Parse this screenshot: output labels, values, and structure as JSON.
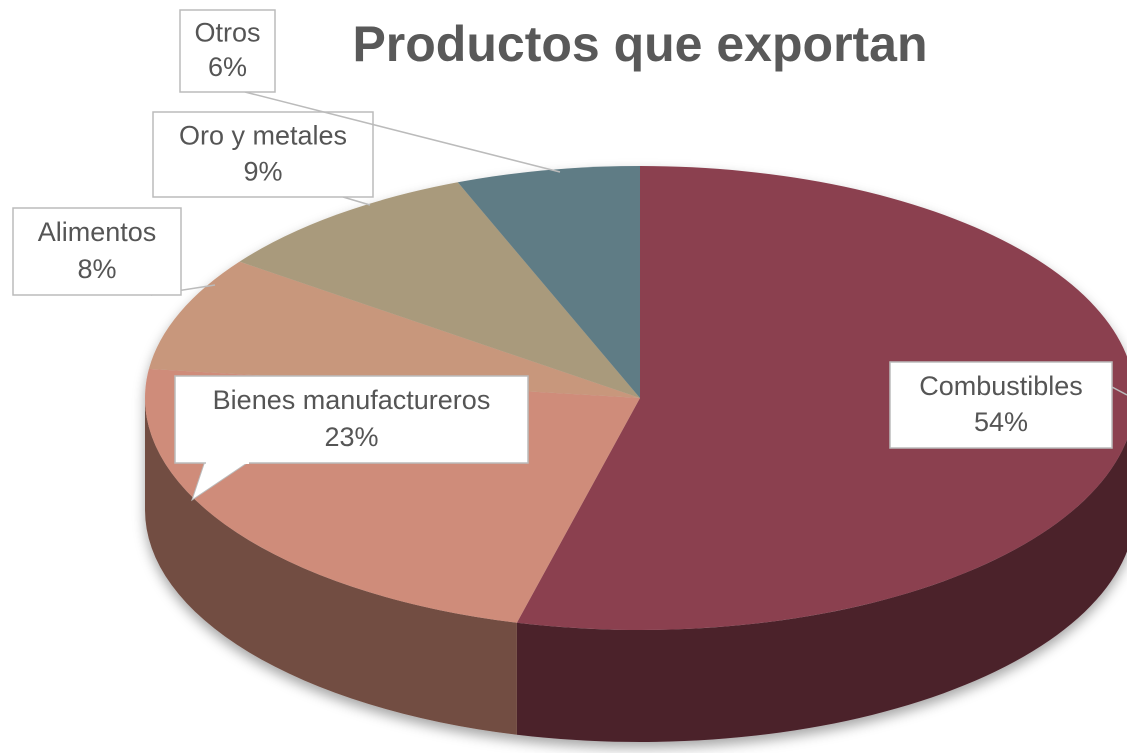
{
  "chart_data": {
    "type": "pie",
    "title": "Productos que exportan",
    "categories": [
      "Combustibles",
      "Bienes manufactureros",
      "Alimentos",
      "Oro y metales",
      "Otros"
    ],
    "values": [
      54,
      23,
      8,
      9,
      6
    ],
    "value_labels": [
      "54%",
      "23%",
      "8%",
      "9%",
      "6%"
    ],
    "colors": [
      "#8b4050",
      "#cf8c7a",
      "#c8977c",
      "#a99a7c",
      "#5f7b85"
    ]
  }
}
